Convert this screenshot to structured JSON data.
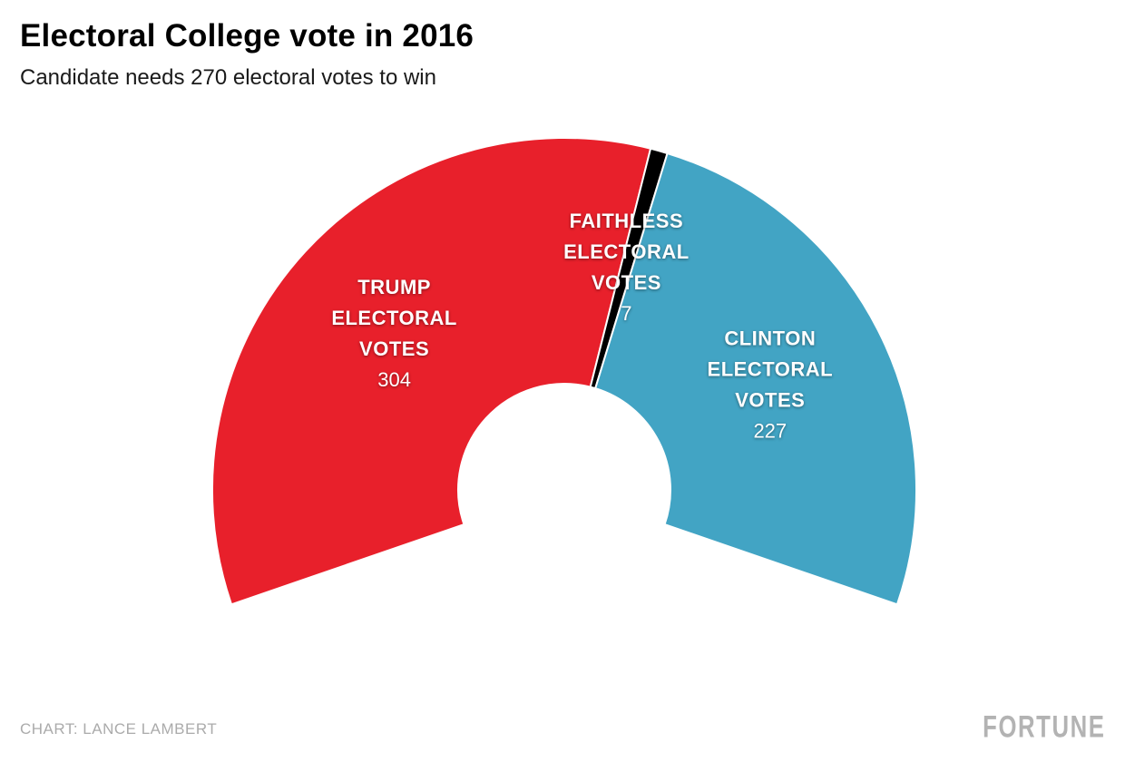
{
  "header": {
    "title": "Electoral College vote in 2016",
    "subtitle": "Candidate needs 270 electoral votes to win"
  },
  "chart_data": {
    "type": "pie",
    "variant": "half-donut-gauge",
    "title": "Electoral College vote in 2016",
    "subtitle": "Candidate needs 270 electoral votes to win",
    "total": 538,
    "votes_to_win": 270,
    "span_degrees": 218,
    "segments": [
      {
        "name": "Trump electoral votes",
        "label_lines": [
          "TRUMP",
          "ELECTORAL",
          "VOTES"
        ],
        "value": 304,
        "color": "#e8202b"
      },
      {
        "name": "Faithless electoral votes",
        "label_lines": [
          "FAITHLESS",
          "ELECTORAL",
          "VOTES"
        ],
        "value": 7,
        "color": "#000000"
      },
      {
        "name": "Clinton electoral votes",
        "label_lines": [
          "CLINTON",
          "ELECTORAL",
          "VOTES"
        ],
        "value": 227,
        "color": "#42a4c4"
      }
    ],
    "label_text_color": "#ffffff",
    "legend_position": "on-slice"
  },
  "footer": {
    "credit": "CHART: LANCE LAMBERT",
    "brand": "FORTUNE"
  }
}
